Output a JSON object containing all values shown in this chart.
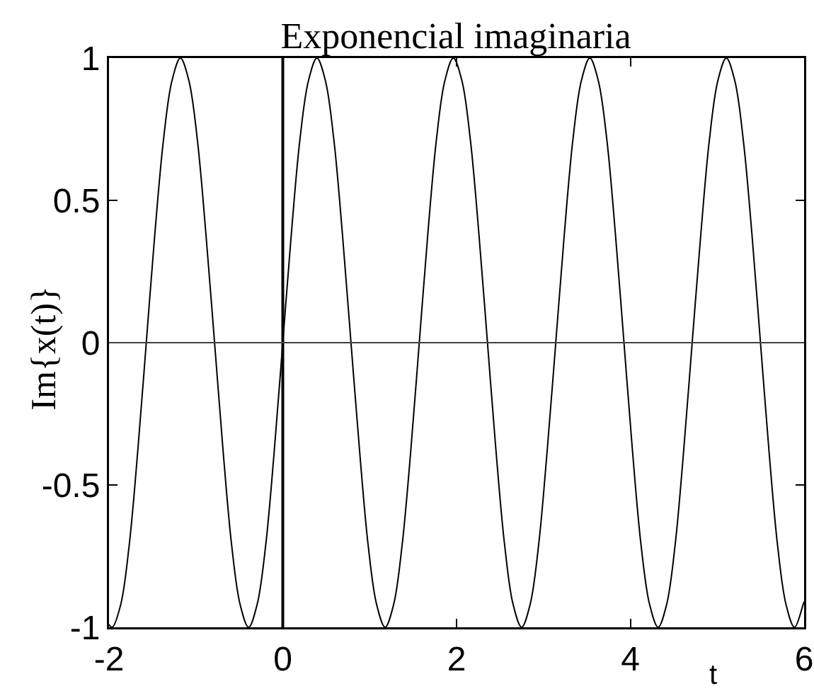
{
  "chart_data": {
    "type": "line",
    "title": "Exponencial imaginaria",
    "xlabel": "t",
    "ylabel": "Im{x(t)}",
    "x": [
      -2,
      -1.963,
      -1.865,
      -1.767,
      -1.669,
      -1.571,
      -1.473,
      -1.374,
      -1.276,
      -1.178,
      -1.08,
      -0.982,
      -0.884,
      -0.785,
      -0.687,
      -0.589,
      -0.491,
      -0.393,
      -0.295,
      -0.196,
      -0.098,
      0,
      0.098,
      0.196,
      0.295,
      0.393,
      0.491,
      0.589,
      0.687,
      0.785,
      0.884,
      0.982,
      1.08,
      1.178,
      1.276,
      1.374,
      1.473,
      1.571,
      1.669,
      1.767,
      1.865,
      1.963,
      2.062,
      2.16,
      2.258,
      2.356,
      2.454,
      2.553,
      2.651,
      2.749,
      2.847,
      2.945,
      3.043,
      3.142,
      3.24,
      3.338,
      3.436,
      3.534,
      3.632,
      3.731,
      3.829,
      3.927,
      4.025,
      4.123,
      4.222,
      4.32,
      4.418,
      4.516,
      4.614,
      4.712,
      4.811,
      4.909,
      5.007,
      5.105,
      5.203,
      5.301,
      5.4,
      5.498,
      5.596,
      5.694,
      5.792,
      5.89,
      5.989,
      6
    ],
    "series": [
      {
        "color": "#000000",
        "values": [
          -0.99,
          -1,
          -0.92,
          -0.71,
          -0.38,
          0,
          0.38,
          0.71,
          0.92,
          1,
          0.92,
          0.71,
          0.38,
          0,
          -0.38,
          -0.71,
          -0.92,
          -1,
          -0.92,
          -0.71,
          -0.38,
          0,
          0.38,
          0.71,
          0.92,
          1,
          0.92,
          0.71,
          0.38,
          0,
          -0.38,
          -0.71,
          -0.92,
          -1,
          -0.92,
          -0.71,
          -0.38,
          0,
          0.38,
          0.71,
          0.92,
          1,
          0.92,
          0.71,
          0.38,
          0,
          -0.38,
          -0.71,
          -0.92,
          -1,
          -0.92,
          -0.71,
          -0.38,
          0,
          0.38,
          0.71,
          0.92,
          1,
          0.92,
          0.71,
          0.38,
          0,
          -0.38,
          -0.71,
          -0.92,
          -1,
          -0.92,
          -0.71,
          -0.38,
          0,
          0.38,
          0.71,
          0.92,
          1,
          0.92,
          0.71,
          0.38,
          0,
          -0.38,
          -0.71,
          -0.92,
          -1,
          -0.92,
          -0.91
        ]
      }
    ],
    "xlim": [
      -2,
      6
    ],
    "ylim": [
      -1,
      1
    ],
    "xticks": [
      -2,
      0,
      2,
      4,
      6
    ],
    "yticks": [
      -1,
      -0.5,
      0,
      0.5,
      1
    ],
    "grid": false,
    "marker": "none",
    "line_style": "solid",
    "ref_lines": [
      {
        "axis": "x",
        "value": 0,
        "color": "#000000"
      },
      {
        "axis": "y",
        "value": 0,
        "color": "#404040"
      }
    ]
  }
}
